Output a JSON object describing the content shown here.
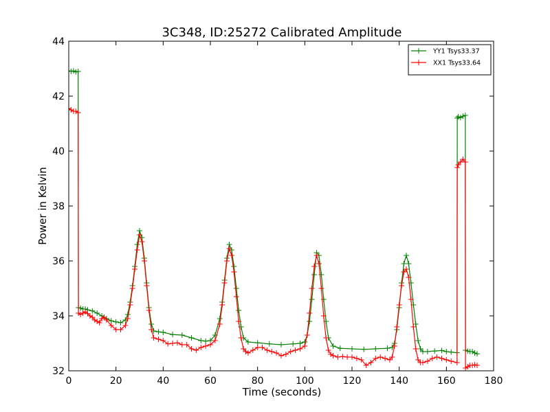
{
  "chart_data": {
    "type": "line",
    "title": "3C348, ID:25272 Calibrated Amplitude",
    "xlabel": "Time (seconds)",
    "ylabel": "Power in Kelvin",
    "xlim": [
      0,
      180
    ],
    "ylim": [
      32,
      44
    ],
    "xticks": [
      0,
      20,
      40,
      60,
      80,
      100,
      120,
      140,
      160,
      180
    ],
    "yticks": [
      32,
      34,
      36,
      38,
      40,
      42,
      44
    ],
    "grid": false,
    "legend_position": "top-right",
    "marker": "+",
    "series": [
      {
        "name": "YY1 Tsys33.37",
        "color": "#008000",
        "x": [
          0,
          1,
          2,
          3,
          4,
          4.1,
          5,
          6,
          7,
          8,
          10,
          12,
          14,
          16,
          18,
          20,
          22,
          24,
          25,
          26,
          27,
          28,
          29,
          30,
          31,
          32,
          33,
          34,
          35,
          36,
          38,
          40,
          44,
          48,
          52,
          56,
          58,
          60,
          62,
          64,
          65,
          66,
          67,
          68,
          69,
          70,
          71,
          72,
          73,
          74,
          76,
          80,
          85,
          90,
          95,
          98,
          100,
          101,
          102,
          103,
          104,
          105,
          106,
          107,
          108,
          109,
          110,
          112,
          115,
          120,
          125,
          130,
          135,
          137,
          138,
          139,
          140,
          141,
          142,
          143,
          144,
          145,
          146,
          147,
          148,
          149,
          150,
          152,
          155,
          158,
          160,
          162,
          164.5,
          164.6,
          165,
          166,
          167,
          168,
          168.1,
          169,
          170,
          171,
          172,
          173
        ],
        "y": [
          42.92,
          42.9,
          42.92,
          42.88,
          42.9,
          34.3,
          34.28,
          34.25,
          34.25,
          34.22,
          34.18,
          34.1,
          34.0,
          33.9,
          33.82,
          33.78,
          33.75,
          33.85,
          34.05,
          34.5,
          35.1,
          35.8,
          36.6,
          37.1,
          36.85,
          36.1,
          35.2,
          34.3,
          33.7,
          33.45,
          33.42,
          33.4,
          33.32,
          33.3,
          33.2,
          33.1,
          33.08,
          33.1,
          33.3,
          33.9,
          34.5,
          35.3,
          36.1,
          36.6,
          36.4,
          35.8,
          35.0,
          34.2,
          33.6,
          33.2,
          33.05,
          33.02,
          32.98,
          32.95,
          32.98,
          33.0,
          33.05,
          33.3,
          33.8,
          34.6,
          35.5,
          36.3,
          36.2,
          35.5,
          34.6,
          33.8,
          33.2,
          32.9,
          32.82,
          32.8,
          32.78,
          32.8,
          32.82,
          32.85,
          33.0,
          33.5,
          34.3,
          35.2,
          35.9,
          36.2,
          35.9,
          35.2,
          34.4,
          33.7,
          33.1,
          32.8,
          32.7,
          32.7,
          32.72,
          32.74,
          32.7,
          32.68,
          32.66,
          41.2,
          41.25,
          41.22,
          41.27,
          41.3,
          32.75,
          32.72,
          32.7,
          32.7,
          32.65,
          32.62
        ]
      },
      {
        "name": "XX1 Tsys33.64",
        "color": "#ff0000",
        "x": [
          0,
          1,
          2,
          3,
          4,
          4.1,
          5,
          6,
          7,
          8,
          9,
          10,
          11,
          12,
          13,
          14,
          15,
          16,
          18,
          20,
          22,
          24,
          25,
          26,
          27,
          28,
          29,
          30,
          31,
          32,
          33,
          34,
          35,
          36,
          38,
          40,
          42,
          44,
          46,
          48,
          50,
          52,
          54,
          56,
          58,
          60,
          62,
          64,
          65,
          66,
          67,
          68,
          69,
          70,
          71,
          72,
          73,
          74,
          75,
          76,
          78,
          80,
          82,
          84,
          86,
          88,
          90,
          92,
          94,
          96,
          98,
          100,
          101,
          102,
          103,
          104,
          105,
          106,
          107,
          108,
          109,
          110,
          111,
          112,
          114,
          116,
          118,
          120,
          122,
          124,
          126,
          128,
          130,
          132,
          134,
          136,
          137,
          138,
          139,
          140,
          141,
          142,
          143,
          144,
          145,
          146,
          147,
          148,
          149,
          150,
          152,
          154,
          156,
          158,
          160,
          162,
          164.5,
          164.6,
          165,
          166,
          167,
          168,
          168.1,
          169,
          170,
          171,
          172,
          173
        ],
        "y": [
          41.55,
          41.5,
          41.45,
          41.45,
          41.4,
          34.1,
          34.05,
          34.1,
          34.15,
          34.08,
          34.0,
          33.95,
          33.85,
          33.8,
          33.75,
          33.9,
          33.95,
          33.85,
          33.65,
          33.5,
          33.5,
          33.65,
          33.9,
          34.4,
          35.0,
          35.7,
          36.4,
          36.95,
          36.7,
          36.0,
          35.1,
          34.2,
          33.5,
          33.2,
          33.15,
          33.1,
          32.98,
          33.0,
          33.02,
          32.95,
          32.95,
          32.8,
          32.75,
          32.85,
          32.9,
          32.95,
          33.1,
          33.7,
          34.4,
          35.2,
          36.0,
          36.45,
          36.2,
          35.6,
          34.7,
          33.8,
          33.2,
          32.8,
          32.7,
          32.65,
          32.75,
          32.85,
          32.85,
          32.75,
          32.7,
          32.65,
          32.55,
          32.6,
          32.7,
          32.75,
          32.8,
          32.9,
          33.3,
          34.1,
          35.0,
          35.8,
          36.2,
          35.9,
          35.0,
          34.0,
          33.2,
          32.75,
          32.6,
          32.55,
          32.5,
          32.52,
          32.5,
          32.5,
          32.45,
          32.4,
          32.2,
          32.3,
          32.45,
          32.5,
          32.45,
          32.4,
          32.5,
          32.9,
          33.6,
          34.4,
          35.1,
          35.6,
          35.7,
          35.4,
          34.6,
          33.6,
          32.8,
          32.4,
          32.3,
          32.3,
          32.35,
          32.45,
          32.5,
          32.45,
          32.4,
          32.35,
          32.3,
          39.4,
          39.5,
          39.6,
          39.7,
          39.6,
          32.1,
          32.15,
          32.2,
          32.2,
          32.22,
          32.2
        ]
      }
    ]
  }
}
